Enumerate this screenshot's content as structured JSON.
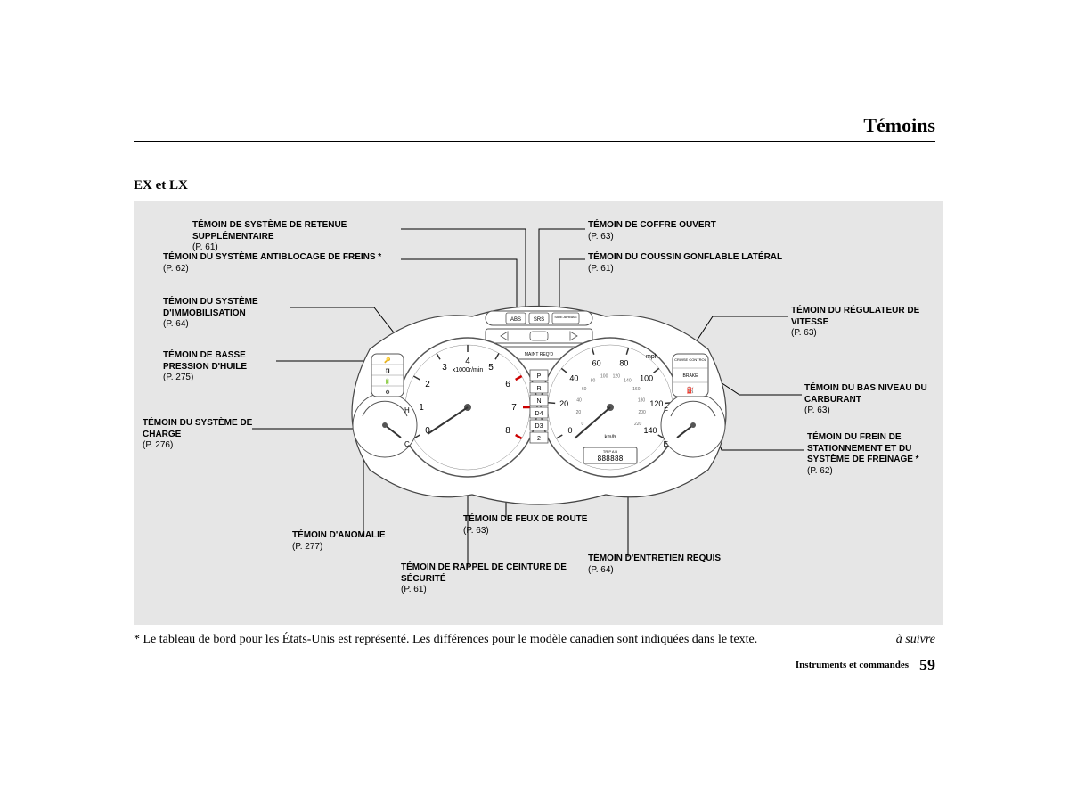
{
  "page": {
    "title": "Témoins",
    "subtitle": "EX et LX",
    "footnote": "* Le tableau de bord pour les États-Unis est représenté. Les différences pour le modèle canadien sont indiquées dans le texte.",
    "continue": "à suivre",
    "footer_section": "Instruments et commandes",
    "footer_page": "59"
  },
  "labels": {
    "srs": {
      "text": "TÉMOIN DE SYSTÈME DE RETENUE SUPPLÉMENTAIRE",
      "ref": "(P. 61)"
    },
    "abs": {
      "text": "TÉMOIN DU SYSTÈME ANTIBLOCAGE DE FREINS *",
      "ref": "(P. 62)"
    },
    "immo": {
      "text": "TÉMOIN DU SYSTÈME D'IMMOBILISATION",
      "ref": "(P. 64)"
    },
    "oil": {
      "text": "TÉMOIN DE BASSE PRESSION D'HUILE",
      "ref": "(P. 275)"
    },
    "charge": {
      "text": "TÉMOIN DU SYSTÈME DE CHARGE",
      "ref": "(P. 276)"
    },
    "mil": {
      "text": "TÉMOIN D'ANOMALIE",
      "ref": "(P. 277)"
    },
    "belt": {
      "text": "TÉMOIN DE RAPPEL DE CEINTURE DE SÉCURITÉ",
      "ref": "(P. 61)"
    },
    "highbeam": {
      "text": "TÉMOIN DE FEUX DE ROUTE",
      "ref": "(P. 63)"
    },
    "maint": {
      "text": "TÉMOIN D'ENTRETIEN REQUIS",
      "ref": "(P. 64)"
    },
    "trunk": {
      "text": "TÉMOIN DE COFFRE OUVERT",
      "ref": "(P. 63)"
    },
    "sideairbag": {
      "text": "TÉMOIN DU COUSSIN GONFLABLE LATÉRAL",
      "ref": "(P. 61)"
    },
    "cruise": {
      "text": "TÉMOIN DU RÉGULATEUR DE VITESSE",
      "ref": "(P. 63)"
    },
    "fuel": {
      "text": "TÉMOIN DU BAS NIVEAU DU CARBURANT",
      "ref": "(P. 63)"
    },
    "brake": {
      "text": "TÉMOIN DU FREIN DE STATIONNEMENT ET DU SYSTÈME DE FREINAGE *",
      "ref": "(P. 62)"
    }
  },
  "cluster": {
    "tachometer": {
      "label": "x1000r/min",
      "ticks": [
        "0",
        "1",
        "2",
        "3",
        "4",
        "5",
        "6",
        "7",
        "8"
      ],
      "redline_start": 6
    },
    "speedometer": {
      "mph_ticks": [
        "0",
        "20",
        "40",
        "60",
        "80",
        "100",
        "120",
        "140"
      ],
      "kmh_ticks": [
        "0",
        "20",
        "40",
        "60",
        "80",
        "100",
        "120",
        "140",
        "160",
        "180",
        "200",
        "220"
      ],
      "mph_label": "mph",
      "kmh_label": "km/h"
    },
    "gear_indicator": [
      "P",
      "R",
      "N",
      "D4",
      "D3",
      "2"
    ],
    "odometer": {
      "label": "TRIP A B",
      "value": "888888"
    },
    "top_indicators": [
      "ABS",
      "SRS",
      "SIDE AIRBAG"
    ],
    "temp_gauge": {
      "top": "H",
      "bottom": "C"
    },
    "fuel_gauge": {
      "top": "F",
      "bottom": "E"
    },
    "cruise_text": "CRUISE CONTROL",
    "brake_text": "BRAKE"
  },
  "style": {
    "diagram_bg": "#e6e6e6",
    "line_color": "#000000",
    "gauge_stroke": "#555555",
    "gauge_fill": "#ffffff",
    "label_font_size": 10,
    "title_font_size": 22
  }
}
